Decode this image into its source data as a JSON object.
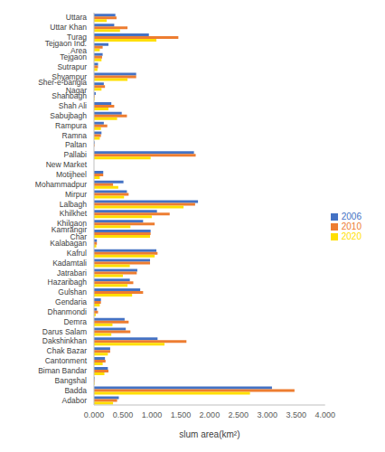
{
  "chart_data": {
    "type": "bar",
    "orientation": "horizontal",
    "x_label": "slum area(km²)",
    "categories": [
      "Uttara",
      "Uttar Khan",
      "Turag",
      "Tejgaon Ind. Area",
      "Tejgaon",
      "Sutrapur",
      "Shyampur",
      "Sher-e-bangla Nagar",
      "Shahbagh",
      "Shah Ali",
      "Sabujbagh",
      "Rampura",
      "Ramna",
      "Paltan",
      "Pallabi",
      "New Market",
      "Motijheel",
      "Mohammadpur",
      "Mirpur",
      "Lalbagh",
      "Khilkhet",
      "Khilgaon",
      "Kamrangir Char",
      "Kalabagan",
      "Kafrul",
      "Kadamtali",
      "Jatrabari",
      "Hazaribagh",
      "Gulshan",
      "Gendaria",
      "Dhanmondi",
      "Demra",
      "Darus Salam",
      "Dakshinkhan",
      "Chak Bazar",
      "Cantonment",
      "Biman Bandar",
      "Bangshal",
      "Badda",
      "Adabor"
    ],
    "series": [
      {
        "name": "2006",
        "color": "#4472c4",
        "values": [
          0.37,
          0.35,
          0.95,
          0.25,
          0.15,
          0.07,
          0.73,
          0.17,
          0.03,
          0.3,
          0.48,
          0.17,
          0.13,
          0.01,
          1.73,
          0,
          0.16,
          0.51,
          0.57,
          1.8,
          1.09,
          0.85,
          0.98,
          0.05,
          1.08,
          0.97,
          0.75,
          0.62,
          0.8,
          0.12,
          0.05,
          0.53,
          0.55,
          1.1,
          0.28,
          0.19,
          0.24,
          0.01,
          3.08,
          0.43
        ]
      },
      {
        "name": "2010",
        "color": "#ed7d31",
        "values": [
          0.39,
          0.58,
          1.46,
          0.15,
          0.14,
          0.07,
          0.73,
          0.19,
          0.01,
          0.35,
          0.57,
          0.23,
          0.12,
          0.01,
          1.76,
          0,
          0.16,
          0.33,
          0.6,
          1.75,
          1.31,
          1.05,
          0.98,
          0.05,
          1.1,
          0.97,
          0.74,
          0.68,
          0.85,
          0.12,
          0.07,
          0.6,
          0.63,
          1.6,
          0.28,
          0.2,
          0.25,
          0.01,
          3.47,
          0.4
        ]
      },
      {
        "name": "2020",
        "color": "#ffdf00",
        "values": [
          0.22,
          0.45,
          1.08,
          0.1,
          0.13,
          0.06,
          0.58,
          0.13,
          0.01,
          0.25,
          0.4,
          0.12,
          0.1,
          0,
          0.98,
          0,
          0.1,
          0.42,
          0.52,
          1.55,
          1.0,
          0.63,
          0.97,
          0.04,
          1.05,
          0.62,
          0.5,
          0.58,
          0.66,
          0.1,
          0.03,
          0.32,
          0.3,
          1.22,
          0.24,
          0.15,
          0.18,
          0.01,
          2.7,
          0.33
        ]
      }
    ],
    "xlim": [
      0,
      4
    ],
    "xticks": [
      {
        "value": 0,
        "label": "0.000"
      },
      {
        "value": 0.5,
        "label": "0.500"
      },
      {
        "value": 1,
        "label": "1.000"
      },
      {
        "value": 1.5,
        "label": "1.500"
      },
      {
        "value": 2,
        "label": "2.000"
      },
      {
        "value": 2.5,
        "label": "2.500"
      },
      {
        "value": 3,
        "label": "3.000"
      },
      {
        "value": 3.5,
        "label": "3.500"
      },
      {
        "value": 4,
        "label": "4.000"
      }
    ],
    "grid": false,
    "legend": "right"
  }
}
